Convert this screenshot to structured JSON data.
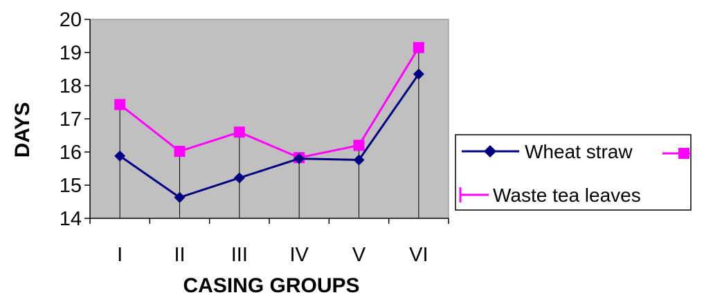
{
  "chart_data": {
    "type": "line",
    "xlabel": "CASING GROUPS",
    "ylabel": "DAYS",
    "categories": [
      "I",
      "II",
      "III",
      "IV",
      "V",
      "VI"
    ],
    "ylim": [
      14,
      20
    ],
    "yticks": [
      "14",
      "15",
      "16",
      "17",
      "18",
      "19",
      "20"
    ],
    "grid": false,
    "drop_lines": true,
    "plot_background": "#c0c0c0",
    "legend_position": "right",
    "series": [
      {
        "name": "Wheat straw",
        "values": [
          15.88,
          14.63,
          15.22,
          15.8,
          15.76,
          18.35
        ],
        "color": "#000080",
        "marker": "diamond"
      },
      {
        "name": "Waste tea leaves",
        "values": [
          17.43,
          16.02,
          16.6,
          15.83,
          16.2,
          19.15
        ],
        "color": "#ff00ff",
        "marker": "square"
      }
    ]
  }
}
